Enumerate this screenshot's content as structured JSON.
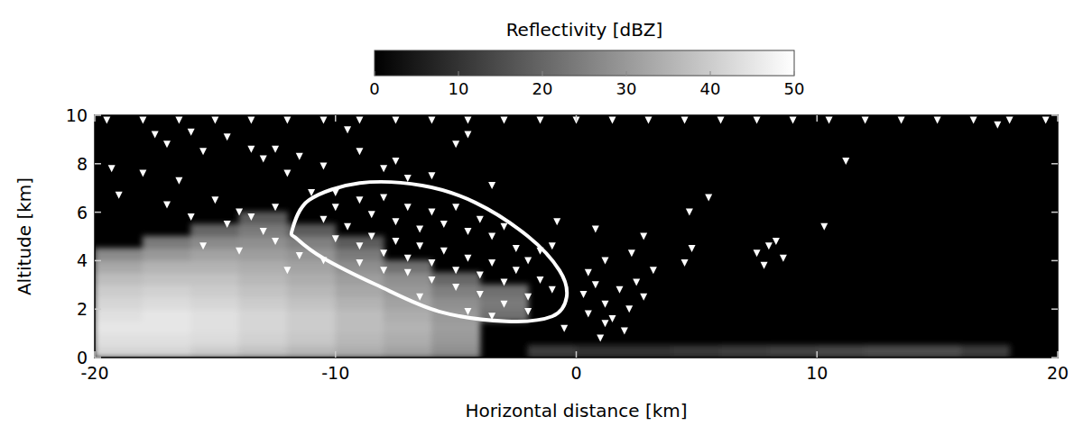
{
  "chart_data": {
    "type": "heatmap",
    "x_label": "Horizontal distance [km]",
    "y_label": "Altitude [km]",
    "xlim": [
      -20,
      20
    ],
    "xticks": [
      -20,
      -10,
      0,
      10,
      20
    ],
    "ylim": [
      0,
      10
    ],
    "yticks": [
      0,
      2,
      4,
      6,
      8,
      10
    ],
    "colorbar": {
      "label": "Reflectivity [dBZ]",
      "range": [
        0,
        50
      ],
      "ticks": [
        0,
        10,
        20,
        30,
        40,
        50
      ]
    },
    "x": [
      -19,
      -17,
      -15,
      -13,
      -11,
      -9,
      -7,
      -5,
      -3,
      -1,
      1,
      3,
      5,
      7,
      9,
      11,
      13,
      15,
      17,
      19
    ],
    "y": [
      0.25,
      0.75,
      1.25,
      1.75,
      2.25,
      2.75,
      3.25,
      3.75,
      4.25,
      4.75,
      5.25,
      5.75,
      6.25,
      6.75,
      7.25,
      7.75,
      8.25,
      8.75,
      9.25,
      9.75
    ],
    "z": [
      [
        42,
        42,
        40,
        38,
        36,
        34,
        32,
        28,
        null,
        12,
        10,
        10,
        11,
        12,
        13,
        14,
        15,
        15,
        12,
        null
      ],
      [
        44,
        44,
        43,
        41,
        39,
        36,
        34,
        30,
        null,
        null,
        null,
        null,
        null,
        null,
        null,
        null,
        null,
        null,
        null,
        null
      ],
      [
        45,
        45,
        44,
        42,
        40,
        37,
        35,
        31,
        null,
        null,
        null,
        null,
        null,
        null,
        null,
        null,
        null,
        null,
        null,
        null
      ],
      [
        44,
        45,
        44,
        42,
        40,
        37,
        34,
        30,
        22,
        null,
        null,
        null,
        null,
        null,
        null,
        null,
        null,
        null,
        null,
        null
      ],
      [
        42,
        43,
        42,
        40,
        38,
        35,
        32,
        28,
        24,
        null,
        null,
        null,
        null,
        null,
        null,
        null,
        null,
        null,
        null,
        null
      ],
      [
        40,
        41,
        40,
        38,
        36,
        33,
        30,
        25,
        22,
        null,
        null,
        null,
        null,
        null,
        null,
        null,
        null,
        null,
        null,
        null
      ],
      [
        37,
        38,
        38,
        36,
        34,
        31,
        28,
        20,
        null,
        null,
        null,
        null,
        null,
        null,
        null,
        null,
        null,
        null,
        null,
        null
      ],
      [
        33,
        35,
        35,
        34,
        32,
        28,
        22,
        null,
        null,
        null,
        null,
        null,
        null,
        null,
        null,
        null,
        null,
        null,
        null,
        null
      ],
      [
        27,
        30,
        32,
        31,
        29,
        24,
        null,
        null,
        null,
        null,
        null,
        null,
        null,
        null,
        null,
        null,
        null,
        null,
        null,
        null
      ],
      [
        null,
        24,
        27,
        28,
        25,
        18,
        null,
        null,
        null,
        null,
        null,
        null,
        null,
        null,
        null,
        null,
        null,
        null,
        null,
        null
      ],
      [
        null,
        null,
        20,
        24,
        18,
        null,
        null,
        null,
        null,
        null,
        null,
        null,
        null,
        null,
        null,
        null,
        null,
        null,
        null,
        null
      ],
      [
        null,
        null,
        null,
        18,
        null,
        null,
        null,
        null,
        null,
        null,
        null,
        null,
        null,
        null,
        null,
        null,
        null,
        null,
        null,
        null
      ],
      [
        null,
        null,
        null,
        null,
        null,
        null,
        null,
        null,
        null,
        null,
        null,
        null,
        null,
        null,
        null,
        null,
        null,
        null,
        null,
        null
      ],
      [
        null,
        null,
        null,
        null,
        null,
        null,
        null,
        null,
        null,
        null,
        null,
        null,
        null,
        null,
        null,
        null,
        null,
        null,
        null,
        null
      ],
      [
        null,
        null,
        null,
        null,
        null,
        null,
        null,
        null,
        null,
        null,
        null,
        null,
        null,
        null,
        null,
        null,
        null,
        null,
        null,
        null
      ],
      [
        null,
        null,
        null,
        null,
        null,
        null,
        null,
        null,
        null,
        null,
        null,
        null,
        null,
        null,
        null,
        null,
        null,
        null,
        null,
        null
      ],
      [
        null,
        null,
        null,
        null,
        null,
        null,
        null,
        null,
        null,
        null,
        null,
        null,
        null,
        null,
        null,
        null,
        null,
        null,
        null,
        null
      ],
      [
        null,
        null,
        null,
        null,
        null,
        null,
        null,
        null,
        null,
        null,
        null,
        null,
        null,
        null,
        null,
        null,
        null,
        null,
        null,
        null
      ],
      [
        null,
        null,
        null,
        null,
        null,
        null,
        null,
        null,
        null,
        null,
        null,
        null,
        null,
        null,
        null,
        null,
        null,
        null,
        null,
        null
      ],
      [
        null,
        null,
        null,
        null,
        null,
        null,
        null,
        null,
        null,
        null,
        null,
        null,
        null,
        null,
        null,
        null,
        null,
        null,
        null,
        null
      ]
    ],
    "series": [
      {
        "type": "scatter",
        "marker": "triangle-down",
        "color": "#ffffff",
        "x": [
          -19.5,
          -18,
          -16.5,
          -15,
          -13.5,
          -12,
          -10.5,
          -9,
          -7.5,
          -6,
          -4.5,
          -3,
          -1.5,
          0,
          1.5,
          3,
          4.5,
          6,
          7.5,
          9,
          10.5,
          12,
          13.5,
          15,
          16.5,
          18,
          19.5,
          -19.3,
          -19,
          -17.5,
          -17,
          -16,
          -15.5,
          -14.5,
          -13.5,
          -13,
          -12.5,
          -12,
          -11.5,
          -10.5,
          -9.5,
          -9,
          -8,
          -7.5,
          -7,
          -6,
          -5,
          -4.5,
          -3.5,
          -16.5,
          -18,
          -17,
          -15,
          -14,
          -13.5,
          -12.5,
          -13,
          -14.5,
          -11,
          -10,
          -15.5,
          -16,
          -10.5,
          -10,
          -9.5,
          -9,
          -8.5,
          -8,
          -7.5,
          -7,
          -6.5,
          -6,
          -5.5,
          -5,
          -4.5,
          -4,
          -3.5,
          -3,
          -10,
          -9,
          -8.5,
          -8,
          -7.5,
          -7,
          -6.5,
          -6,
          -5.5,
          -5,
          -4.5,
          -4,
          -3.5,
          -3,
          -2.5,
          -2,
          -1.5,
          -1,
          -2,
          -3,
          -4,
          -5,
          -6,
          -7,
          -8,
          -9,
          -2.5,
          -1.5,
          -6.5,
          -4.5,
          -3.5,
          -2,
          0.3,
          0.8,
          1.2,
          1.5,
          1.8,
          2.2,
          2.5,
          2,
          1.2,
          0.5,
          -0.5,
          1.0,
          2.8,
          0.5,
          -1,
          1.2,
          2.3,
          3.2,
          4.7,
          5.5,
          4.8,
          4.5,
          7.5,
          8,
          8.3,
          7.8,
          8.6,
          11.2,
          10.3,
          17.5,
          2.8,
          -0.8,
          0.8,
          -14,
          -12.5,
          -11.5,
          -10.5,
          -12
        ],
        "y": [
          9.8,
          9.8,
          9.8,
          9.8,
          9.8,
          9.8,
          9.8,
          9.8,
          9.8,
          9.8,
          9.8,
          9.8,
          9.8,
          9.8,
          9.8,
          9.8,
          9.8,
          9.8,
          9.8,
          9.8,
          9.8,
          9.8,
          9.8,
          9.8,
          9.8,
          9.8,
          9.8,
          7.8,
          6.7,
          9.2,
          8.8,
          9.3,
          8.5,
          9.1,
          8.6,
          8.2,
          8.6,
          7.6,
          8.3,
          7.9,
          9.4,
          8.5,
          7.8,
          8.1,
          7.4,
          7.5,
          8.8,
          9.2,
          7.1,
          7.3,
          7.6,
          6.3,
          6.5,
          6.0,
          5.8,
          6.2,
          5.2,
          5.5,
          6.8,
          6.8,
          4.6,
          5.8,
          5.7,
          6.2,
          5.4,
          6.5,
          5.9,
          6.6,
          5.6,
          6.2,
          5.3,
          6.0,
          5.5,
          6.2,
          5.2,
          5.7,
          5.0,
          5.4,
          4.9,
          4.6,
          5.0,
          4.3,
          4.8,
          4.1,
          4.6,
          3.9,
          4.4,
          3.6,
          4.1,
          3.4,
          3.9,
          3.1,
          3.6,
          4.0,
          3.2,
          2.8,
          2.5,
          2.2,
          2.6,
          2.9,
          3.2,
          3.5,
          3.6,
          3.9,
          4.5,
          4.4,
          2.5,
          1.9,
          1.7,
          1.9,
          2.6,
          3.0,
          2.2,
          1.6,
          2.8,
          2.0,
          3.1,
          1.1,
          1.4,
          1.8,
          1.2,
          0.8,
          2.5,
          3.5,
          4.6,
          4.0,
          4.3,
          3.6,
          6.0,
          6.6,
          4.5,
          3.9,
          4.3,
          4.6,
          4.8,
          3.8,
          4.1,
          8.1,
          5.4,
          9.6,
          5.0,
          5.6,
          5.3,
          4.4,
          4.8,
          4.2,
          4.0,
          3.6
        ]
      },
      {
        "type": "line",
        "line_style": "solid",
        "color": "#ffffff",
        "x": [
          -11.8,
          -11.1,
          -9.0,
          -6.4,
          -4.2,
          -2.0,
          -0.7,
          -0.4,
          -1.0,
          -2.9,
          -5.7,
          -8.3,
          -10.5,
          -11.6
        ],
        "y": [
          5.26,
          6.5,
          7.2,
          7.1,
          6.4,
          5.0,
          3.6,
          2.5,
          1.7,
          1.5,
          1.9,
          3.0,
          4.1,
          4.9
        ]
      }
    ]
  }
}
